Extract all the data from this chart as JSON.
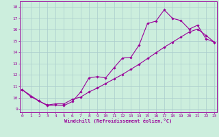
{
  "xlabel": "Windchill (Refroidissement éolien,°C)",
  "bg_color": "#cceedd",
  "line_color": "#990099",
  "grid_color": "#aacccc",
  "x_ticks": [
    0,
    1,
    2,
    3,
    4,
    5,
    6,
    7,
    8,
    9,
    10,
    11,
    12,
    13,
    14,
    15,
    16,
    17,
    18,
    19,
    20,
    21,
    22,
    23
  ],
  "y_ticks": [
    9,
    10,
    11,
    12,
    13,
    14,
    15,
    16,
    17,
    18
  ],
  "xlim": [
    -0.3,
    23.3
  ],
  "ylim": [
    8.7,
    18.5
  ],
  "line1_x": [
    0,
    1,
    2,
    3,
    4,
    5,
    6,
    7,
    8,
    9,
    10,
    11,
    12,
    13,
    14,
    15,
    16,
    17,
    18,
    19,
    20,
    21,
    22,
    23
  ],
  "line1_y": [
    10.7,
    10.1,
    9.7,
    9.3,
    9.35,
    9.3,
    9.65,
    10.5,
    11.75,
    11.85,
    11.75,
    12.65,
    13.5,
    13.55,
    14.65,
    16.55,
    16.75,
    17.75,
    17.0,
    16.8,
    16.05,
    16.4,
    15.2,
    14.9
  ],
  "line2_x": [
    0,
    2,
    3,
    4,
    5,
    6,
    7,
    8,
    9,
    10,
    11,
    12,
    13,
    14,
    15,
    16,
    17,
    18,
    19,
    20,
    21,
    22,
    23
  ],
  "line2_y": [
    10.7,
    9.7,
    9.35,
    9.45,
    9.45,
    9.85,
    10.05,
    10.5,
    10.85,
    11.25,
    11.65,
    12.05,
    12.5,
    12.95,
    13.45,
    13.95,
    14.45,
    14.9,
    15.35,
    15.8,
    16.05,
    15.5,
    14.9
  ]
}
